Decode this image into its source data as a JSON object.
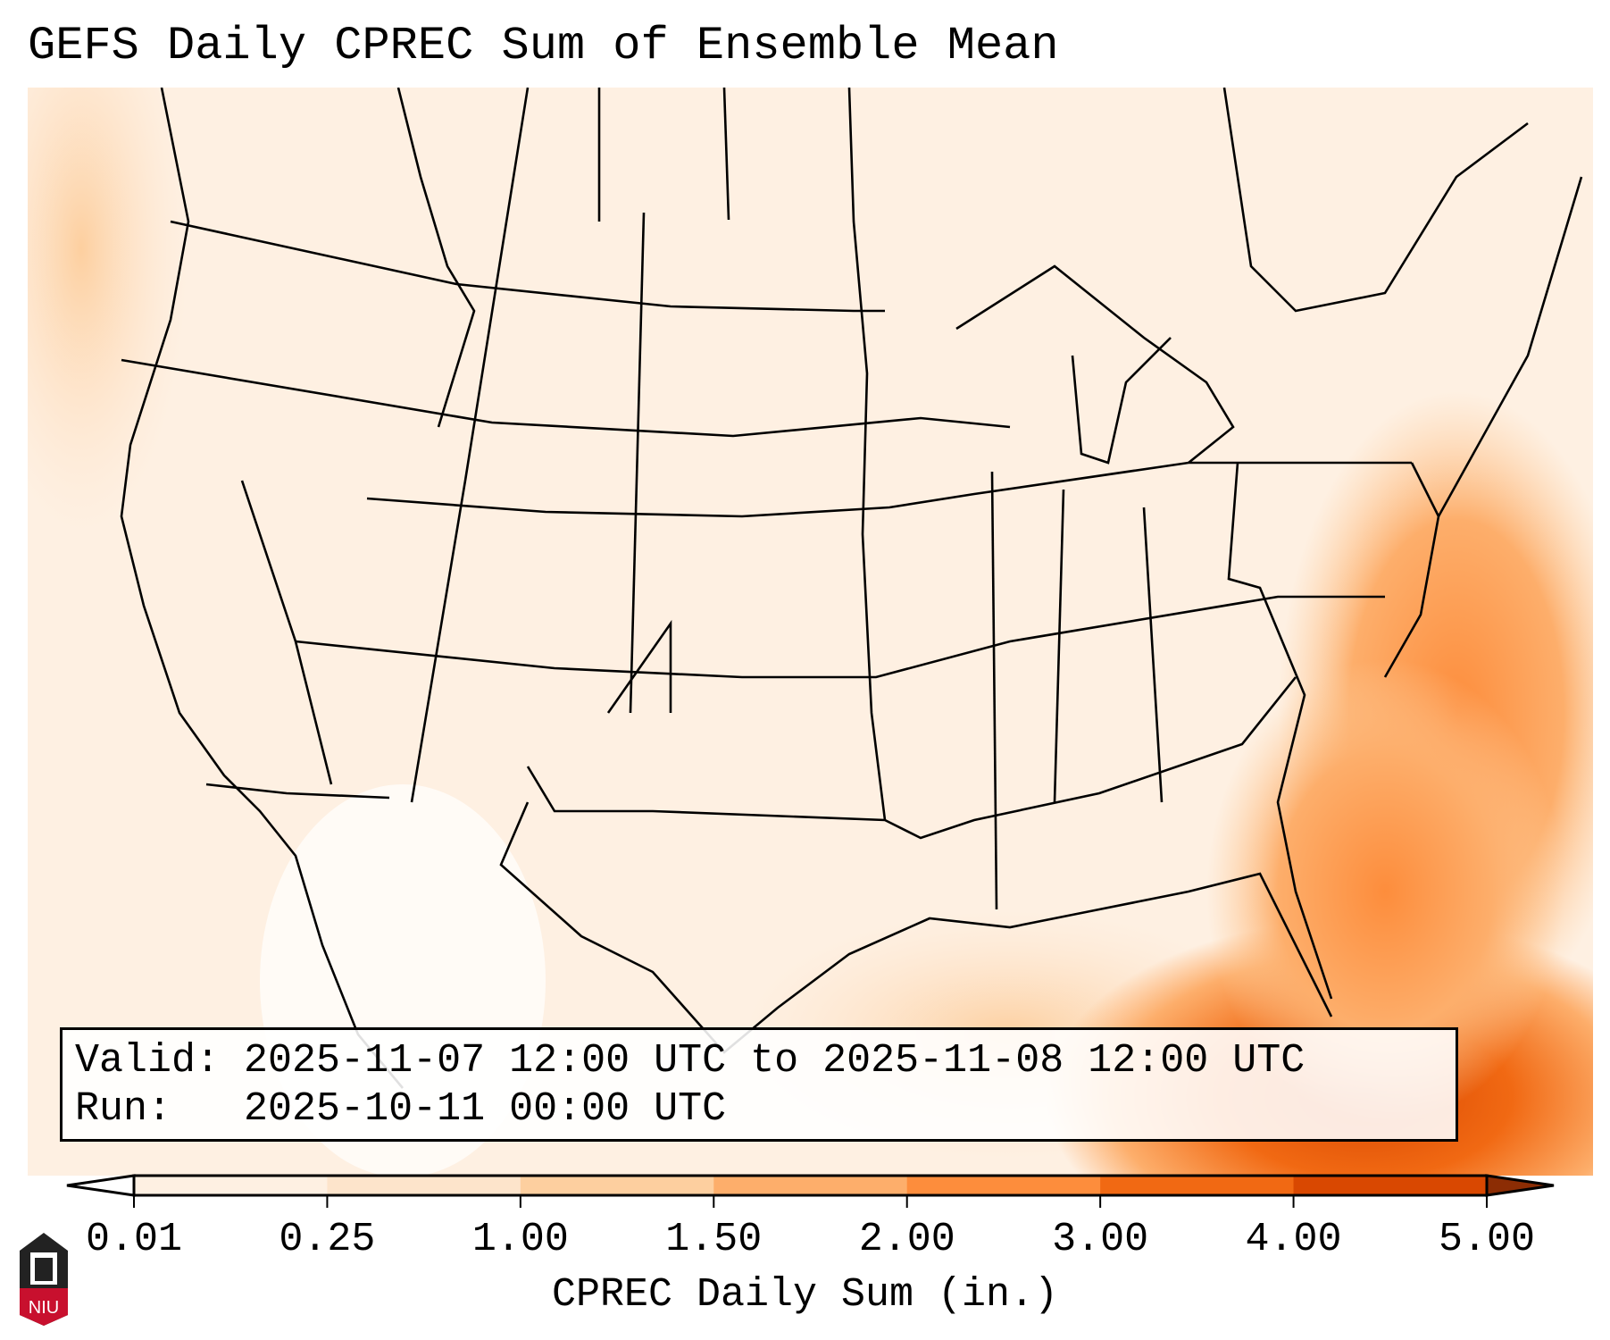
{
  "title": "GEFS Daily CPREC Sum of Ensemble Mean",
  "info": {
    "valid_label": "Valid:",
    "valid_value": "2025-11-07 12:00 UTC to 2025-11-08 12:00 UTC",
    "run_label": "Run:",
    "run_value": "2025-10-11 00:00 UTC"
  },
  "colorbar": {
    "label": "CPREC Daily Sum (in.)",
    "ticks": [
      "0.01",
      "0.25",
      "1.00",
      "1.50",
      "2.00",
      "3.00",
      "4.00",
      "5.00"
    ],
    "colors": [
      "#fef0e2",
      "#fde4cb",
      "#fdcf9f",
      "#fdae6b",
      "#fd8d3c",
      "#f16913",
      "#d94801",
      "#8c2d04"
    ],
    "under_color": "#ffffff",
    "over_color": "#8c2d04"
  },
  "logo": {
    "text": "NIU"
  }
}
